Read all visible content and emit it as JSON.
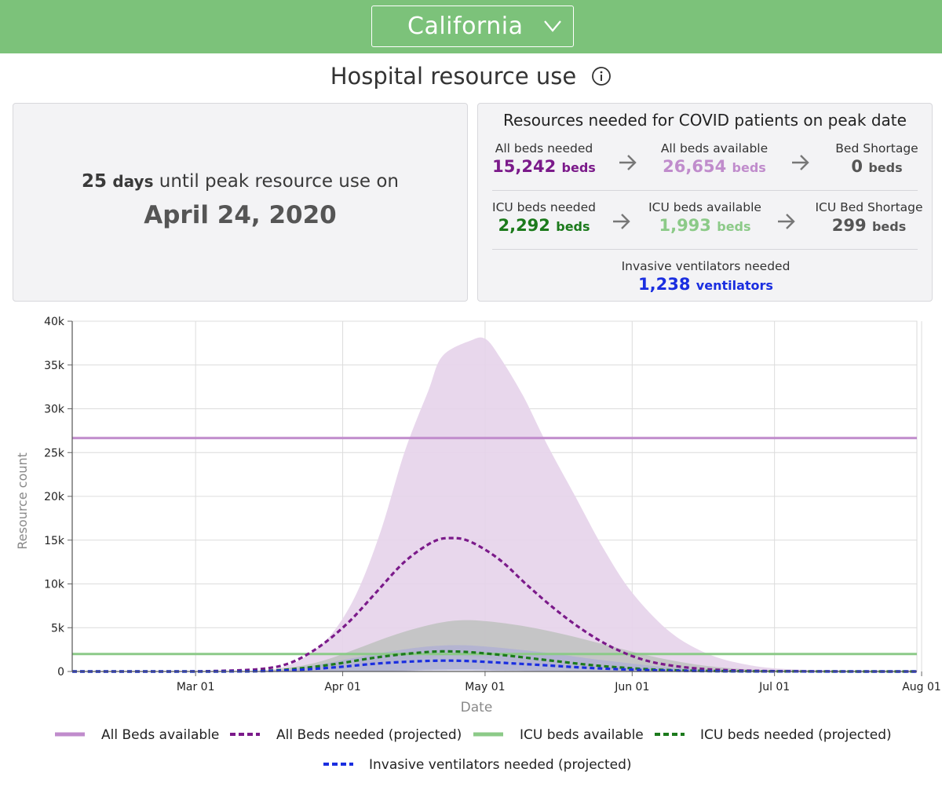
{
  "header": {
    "state_label": "California",
    "dropdown_icon": "chevron-down-icon"
  },
  "title": {
    "text": "Hospital resource use",
    "info_icon": "info-circle-icon"
  },
  "peak": {
    "days": "25",
    "days_word": "days",
    "text": "until peak resource use on",
    "date": "April 24, 2020"
  },
  "resources": {
    "title": "Resources needed for COVID patients on peak date",
    "all_beds_needed": {
      "label": "All beds needed",
      "value": "15,242",
      "unit": "beds",
      "color": "#7b1a8a"
    },
    "all_beds_available": {
      "label": "All beds available",
      "value": "26,654",
      "unit": "beds",
      "color": "#c08ccc"
    },
    "bed_shortage": {
      "label": "Bed Shortage",
      "value": "0",
      "unit": "beds",
      "color": "#555555"
    },
    "icu_beds_needed": {
      "label": "ICU beds needed",
      "value": "2,292",
      "unit": "beds",
      "color": "#1c7a1c"
    },
    "icu_beds_available": {
      "label": "ICU beds available",
      "value": "1,993",
      "unit": "beds",
      "color": "#8cca88"
    },
    "icu_bed_shortage": {
      "label": "ICU Bed Shortage",
      "value": "299",
      "unit": "beds",
      "color": "#555555"
    },
    "ventilators_needed": {
      "label": "Invasive ventilators needed",
      "value": "1,238",
      "unit": "ventilators",
      "color": "#1a2ee0"
    }
  },
  "chart_data": {
    "type": "area",
    "xlabel": "Date",
    "ylabel": "Resource count",
    "ylim": [
      0,
      40000
    ],
    "xlim_days": [
      0,
      178
    ],
    "x_origin_date": "2020-02-04",
    "yticks": [
      {
        "value": 0,
        "label": "0"
      },
      {
        "value": 5000,
        "label": "5k"
      },
      {
        "value": 10000,
        "label": "10k"
      },
      {
        "value": 15000,
        "label": "15k"
      },
      {
        "value": 20000,
        "label": "20k"
      },
      {
        "value": 25000,
        "label": "25k"
      },
      {
        "value": 30000,
        "label": "30k"
      },
      {
        "value": 35000,
        "label": "35k"
      },
      {
        "value": 40000,
        "label": "40k"
      }
    ],
    "xticks": [
      {
        "day": 26,
        "label": "Mar 01"
      },
      {
        "day": 57,
        "label": "Apr 01"
      },
      {
        "day": 87,
        "label": "May 01"
      },
      {
        "day": 118,
        "label": "Jun 01"
      },
      {
        "day": 148,
        "label": "Jul 01"
      },
      {
        "day": 179,
        "label": "Aug 01"
      }
    ],
    "grid": true,
    "colors": {
      "all_beds": "#c08ccc",
      "all_beds_needed": "#7b1a8a",
      "all_beds_band": "#e6d3ea",
      "icu": "#8cca88",
      "icu_needed": "#1c7a1c",
      "icu_band": "#b9bfba",
      "vent": "#1a2ee0",
      "vent_band": "#a9a9d8"
    },
    "series": [
      {
        "name": "All Beds available",
        "style": "solid",
        "values": [
          [
            0,
            26654
          ],
          [
            178,
            26654
          ]
        ]
      },
      {
        "name": "ICU beds available",
        "style": "solid",
        "values": [
          [
            0,
            1993
          ],
          [
            178,
            1993
          ]
        ]
      },
      {
        "name": "All Beds needed (projected)",
        "style": "dashed",
        "values": [
          [
            0,
            0
          ],
          [
            20,
            0
          ],
          [
            30,
            50
          ],
          [
            40,
            300
          ],
          [
            46,
            1000
          ],
          [
            52,
            2800
          ],
          [
            58,
            5500
          ],
          [
            64,
            9000
          ],
          [
            70,
            12500
          ],
          [
            76,
            14800
          ],
          [
            80,
            15242
          ],
          [
            84,
            14800
          ],
          [
            90,
            12800
          ],
          [
            96,
            9800
          ],
          [
            102,
            7000
          ],
          [
            108,
            4600
          ],
          [
            114,
            2700
          ],
          [
            120,
            1400
          ],
          [
            126,
            700
          ],
          [
            134,
            250
          ],
          [
            145,
            60
          ],
          [
            160,
            10
          ],
          [
            178,
            0
          ]
        ],
        "lower": [
          [
            0,
            0
          ],
          [
            40,
            0
          ],
          [
            55,
            200
          ],
          [
            65,
            800
          ],
          [
            75,
            1500
          ],
          [
            80,
            1800
          ],
          [
            90,
            1400
          ],
          [
            100,
            700
          ],
          [
            115,
            200
          ],
          [
            178,
            0
          ]
        ],
        "upper": [
          [
            0,
            0
          ],
          [
            35,
            0
          ],
          [
            40,
            100
          ],
          [
            45,
            600
          ],
          [
            50,
            2000
          ],
          [
            55,
            4500
          ],
          [
            60,
            9000
          ],
          [
            65,
            16000
          ],
          [
            70,
            25000
          ],
          [
            75,
            32000
          ],
          [
            78,
            36000
          ],
          [
            84,
            37800
          ],
          [
            87,
            38000
          ],
          [
            90,
            36000
          ],
          [
            95,
            31500
          ],
          [
            100,
            26000
          ],
          [
            106,
            20000
          ],
          [
            112,
            14000
          ],
          [
            118,
            9000
          ],
          [
            126,
            4500
          ],
          [
            134,
            2000
          ],
          [
            142,
            800
          ],
          [
            150,
            300
          ],
          [
            165,
            50
          ],
          [
            178,
            0
          ]
        ]
      },
      {
        "name": "ICU beds needed (projected)",
        "style": "dashed",
        "values": [
          [
            0,
            0
          ],
          [
            30,
            0
          ],
          [
            40,
            60
          ],
          [
            48,
            350
          ],
          [
            56,
            900
          ],
          [
            64,
            1600
          ],
          [
            72,
            2100
          ],
          [
            78,
            2292
          ],
          [
            84,
            2200
          ],
          [
            92,
            1800
          ],
          [
            100,
            1300
          ],
          [
            110,
            700
          ],
          [
            120,
            300
          ],
          [
            130,
            100
          ],
          [
            145,
            20
          ],
          [
            178,
            0
          ]
        ],
        "lower": [
          [
            0,
            0
          ],
          [
            60,
            0
          ],
          [
            75,
            200
          ],
          [
            85,
            250
          ],
          [
            100,
            100
          ],
          [
            178,
            0
          ]
        ],
        "upper": [
          [
            0,
            0
          ],
          [
            36,
            0
          ],
          [
            44,
            300
          ],
          [
            52,
            1100
          ],
          [
            60,
            2600
          ],
          [
            68,
            4200
          ],
          [
            76,
            5400
          ],
          [
            82,
            5850
          ],
          [
            88,
            5700
          ],
          [
            96,
            5100
          ],
          [
            104,
            4200
          ],
          [
            112,
            3100
          ],
          [
            120,
            2000
          ],
          [
            128,
            1100
          ],
          [
            136,
            500
          ],
          [
            146,
            150
          ],
          [
            160,
            20
          ],
          [
            178,
            0
          ]
        ]
      },
      {
        "name": "Invasive ventilators needed (projected)",
        "style": "dashed",
        "values": [
          [
            0,
            0
          ],
          [
            30,
            0
          ],
          [
            40,
            40
          ],
          [
            48,
            200
          ],
          [
            56,
            500
          ],
          [
            64,
            900
          ],
          [
            72,
            1150
          ],
          [
            78,
            1238
          ],
          [
            84,
            1180
          ],
          [
            92,
            950
          ],
          [
            100,
            700
          ],
          [
            110,
            380
          ],
          [
            120,
            170
          ],
          [
            130,
            60
          ],
          [
            145,
            10
          ],
          [
            178,
            0
          ]
        ],
        "lower": [
          [
            0,
            0
          ],
          [
            60,
            0
          ],
          [
            75,
            100
          ],
          [
            85,
            120
          ],
          [
            100,
            50
          ],
          [
            178,
            0
          ]
        ],
        "upper": [
          [
            0,
            0
          ],
          [
            40,
            0
          ],
          [
            50,
            600
          ],
          [
            58,
            1400
          ],
          [
            66,
            2200
          ],
          [
            74,
            2800
          ],
          [
            80,
            3000
          ],
          [
            86,
            2900
          ],
          [
            94,
            2500
          ],
          [
            102,
            2000
          ],
          [
            110,
            1400
          ],
          [
            118,
            900
          ],
          [
            126,
            450
          ],
          [
            136,
            150
          ],
          [
            150,
            30
          ],
          [
            178,
            0
          ]
        ]
      }
    ],
    "legend": [
      {
        "label": "All Beds available",
        "style": "solid",
        "color": "#c08ccc"
      },
      {
        "label": "All Beds needed (projected)",
        "style": "dashed",
        "color": "#7b1a8a"
      },
      {
        "label": "ICU beds available",
        "style": "solid",
        "color": "#8cca88"
      },
      {
        "label": "ICU beds needed (projected)",
        "style": "dashed",
        "color": "#1c7a1c"
      },
      {
        "label": "Invasive ventilators needed (projected)",
        "style": "dashed",
        "color": "#1a2ee0"
      }
    ],
    "legend_position": "bottom"
  }
}
